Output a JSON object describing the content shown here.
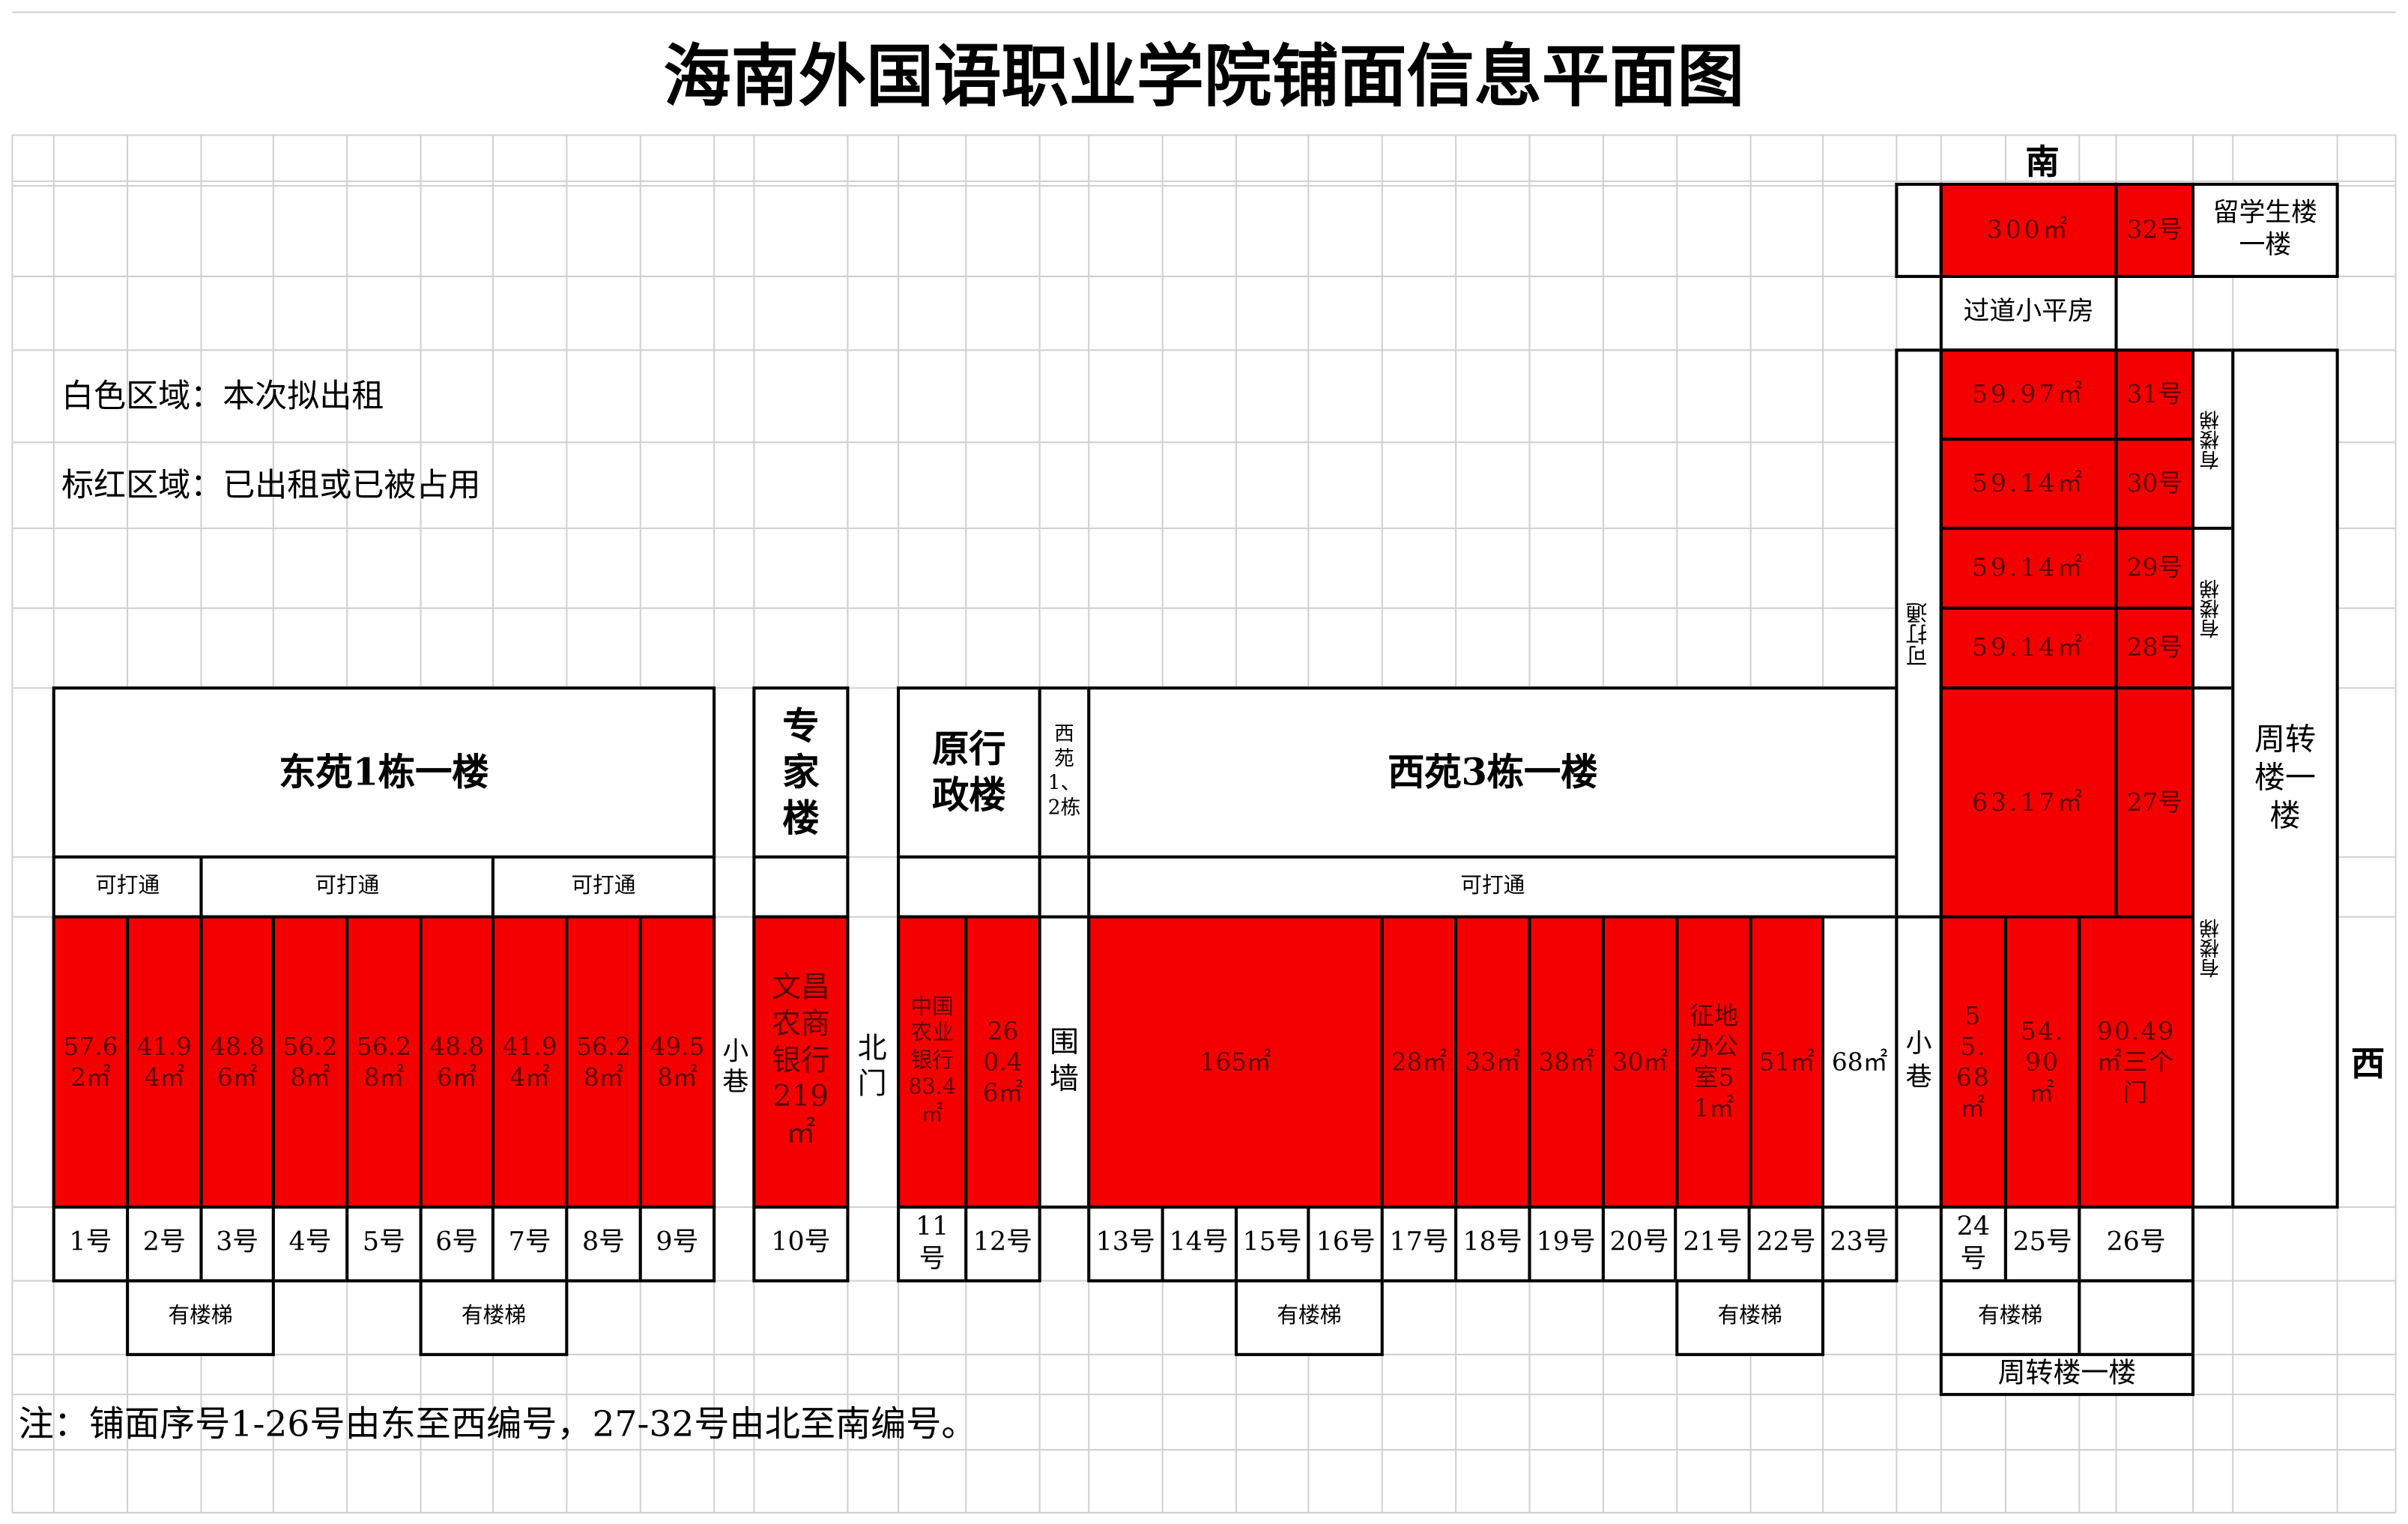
{
  "title": "海南外国语职业学院铺面信息平面图",
  "legend": {
    "white": "白色区域：本次拟出租",
    "red": "标红区域：已出租或已被占用"
  },
  "colors": {
    "rented": "#f50000",
    "available": "#ffffff",
    "grid": "#d0d0d0"
  },
  "compass": {
    "south": "南",
    "west": "西"
  },
  "buildings": {
    "dongyuan1": "东苑1栋一楼",
    "expert": "专家楼",
    "admin": "原行政楼",
    "xiyuan12": "西苑1、2栋",
    "xiyuan3": "西苑3栋一楼",
    "intl": "留学生楼一楼",
    "passage": "过道小平房",
    "zhouzhuan": "周转楼一楼",
    "zhouzhuan_bottom": "周转楼一楼"
  },
  "labels": {
    "connectable": "可打通",
    "stairs": "有楼梯",
    "alley": "小巷",
    "north_gate": "北门",
    "wall": "围墙"
  },
  "areas": [
    {
      "label": "57.62㎡",
      "status": "rented"
    },
    {
      "label": "41.94㎡",
      "status": "rented"
    },
    {
      "label": "48.86㎡",
      "status": "rented"
    },
    {
      "label": "56.28㎡",
      "status": "rented"
    },
    {
      "label": "56.28㎡",
      "status": "rented"
    },
    {
      "label": "48.86㎡",
      "status": "rented"
    },
    {
      "label": "41.94㎡",
      "status": "rented"
    },
    {
      "label": "56.28㎡",
      "status": "rented"
    },
    {
      "label": "49.58㎡",
      "status": "rented"
    },
    {
      "label": "文昌农商银行219㎡",
      "status": "rented"
    },
    {
      "label": "中国农业银行83.4㎡",
      "status": "rented"
    },
    {
      "label": "260.46㎡",
      "status": "rented"
    },
    {
      "label": "165㎡",
      "status": "rented"
    },
    {
      "label": "28㎡",
      "status": "rented"
    },
    {
      "label": "33㎡",
      "status": "rented"
    },
    {
      "label": "38㎡",
      "status": "rented"
    },
    {
      "label": "30㎡",
      "status": "rented"
    },
    {
      "label": "征地办公室51㎡",
      "status": "rented"
    },
    {
      "label": "51㎡",
      "status": "rented"
    },
    {
      "label": "68㎡",
      "status": "available"
    },
    {
      "label": "55.68㎡",
      "status": "rented"
    },
    {
      "label": "54.90㎡",
      "status": "rented"
    },
    {
      "label": "90.49㎡三个门",
      "status": "rented"
    },
    {
      "label": "63.17㎡",
      "status": "rented"
    },
    {
      "label": "59.14㎡",
      "status": "rented"
    },
    {
      "label": "59.14㎡",
      "status": "rented"
    },
    {
      "label": "59.14㎡",
      "status": "rented"
    },
    {
      "label": "59.97㎡",
      "status": "rented"
    },
    {
      "label": "300㎡",
      "status": "rented"
    }
  ],
  "numbers": [
    "1号",
    "2号",
    "3号",
    "4号",
    "5号",
    "6号",
    "7号",
    "8号",
    "9号",
    "10号",
    "11号",
    "12号",
    "13号",
    "14号",
    "15号",
    "16号",
    "17号",
    "18号",
    "19号",
    "20号",
    "21号",
    "22号",
    "23号",
    "24号",
    "25号",
    "26号",
    "27号",
    "28号",
    "29号",
    "30号",
    "31号",
    "32号"
  ],
  "note": "注：铺面序号1-26号由东至西编号，27-32号由北至南编号。"
}
